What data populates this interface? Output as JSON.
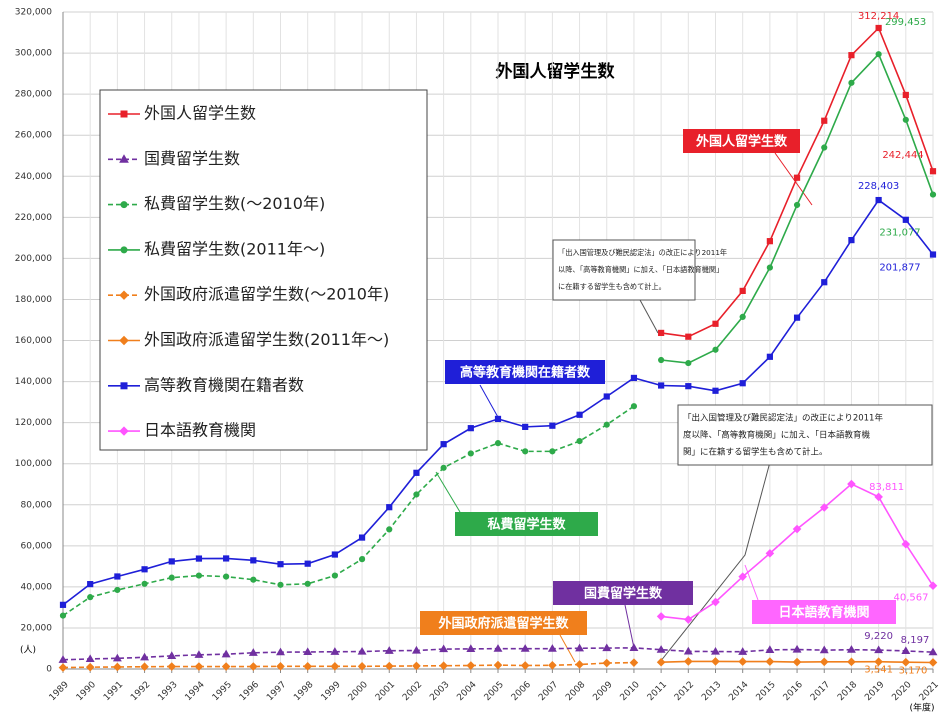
{
  "chart_data": {
    "type": "line",
    "title": "外国人留学生数",
    "y_unit": "(人)",
    "x_unit": "(年度)",
    "categories": [
      "1989",
      "1990",
      "1991",
      "1992",
      "1993",
      "1994",
      "1995",
      "1996",
      "1997",
      "1998",
      "1999",
      "2000",
      "2001",
      "2002",
      "2003",
      "2004",
      "2005",
      "2006",
      "2007",
      "2008",
      "2009",
      "2010",
      "2011",
      "2012",
      "2013",
      "2014",
      "2015",
      "2016",
      "2017",
      "2018",
      "2019",
      "2020",
      "2021"
    ],
    "ylim": [
      0,
      320000
    ],
    "yticks": [
      0,
      {
        "value": 20000,
        "label": "20,000"
      },
      {
        "value": 40000,
        "label": "40,000"
      },
      {
        "value": 60000,
        "label": "60,000"
      },
      {
        "value": 80000,
        "label": "80,000"
      },
      {
        "value": 100000,
        "label": "100,000"
      },
      {
        "value": 120000,
        "label": "120,000"
      },
      {
        "value": 140000,
        "label": "140,000"
      },
      {
        "value": 160000,
        "label": "160,000"
      },
      {
        "value": 180000,
        "label": "180,000"
      },
      {
        "value": 200000,
        "label": "200,000"
      },
      {
        "value": 220000,
        "label": "220,000"
      },
      {
        "value": 240000,
        "label": "240,000"
      },
      {
        "value": 260000,
        "label": "260,000"
      },
      {
        "value": 280000,
        "label": "280,000"
      },
      {
        "value": 300000,
        "label": "300,000"
      },
      {
        "value": 320000,
        "label": "320,000"
      }
    ],
    "grid": true,
    "legend": "top-left",
    "series": [
      {
        "name": "外国人留学生数",
        "color": "#e8202a",
        "marker": "square",
        "dash": false,
        "values": [
          null,
          null,
          null,
          null,
          null,
          null,
          null,
          null,
          null,
          null,
          null,
          null,
          null,
          null,
          null,
          null,
          null,
          null,
          null,
          null,
          null,
          null,
          163697,
          161848,
          168145,
          184155,
          208379,
          239287,
          267042,
          298980,
          312214,
          279597,
          242444
        ],
        "value_labels": [
          null,
          null,
          null,
          null,
          null,
          null,
          null,
          null,
          null,
          null,
          null,
          null,
          null,
          null,
          null,
          null,
          null,
          null,
          null,
          null,
          null,
          null,
          null,
          null,
          null,
          null,
          null,
          null,
          null,
          null,
          "312,214",
          null,
          "242,444"
        ]
      },
      {
        "name": "国費留学生数",
        "color": "#7030a0",
        "marker": "triangle",
        "dash": true,
        "values": [
          4500,
          4900,
          5200,
          5700,
          6400,
          6900,
          7200,
          7900,
          8200,
          8300,
          8400,
          8500,
          8900,
          9000,
          9700,
          9800,
          9900,
          9900,
          9900,
          10100,
          10200,
          10300,
          9400,
          8600,
          8500,
          8400,
          9300,
          9500,
          9200,
          9400,
          9220,
          8800,
          8197
        ],
        "value_labels": [
          null,
          null,
          null,
          null,
          null,
          null,
          null,
          null,
          null,
          null,
          null,
          null,
          null,
          null,
          null,
          null,
          null,
          null,
          null,
          null,
          null,
          null,
          null,
          null,
          null,
          null,
          null,
          null,
          null,
          null,
          "9,220",
          null,
          "8,197"
        ]
      },
      {
        "name": "私費留学生数(～2010年)",
        "color": "#2eaa4a",
        "marker": "circle",
        "dash": true,
        "values": [
          26000,
          35000,
          38500,
          41500,
          44500,
          45500,
          45000,
          43500,
          41000,
          41500,
          45500,
          53500,
          68000,
          85000,
          98000,
          105000,
          110000,
          106000,
          106000,
          111000,
          119000,
          128000,
          null,
          null,
          null,
          null,
          null,
          null,
          null,
          null,
          null,
          null,
          null
        ]
      },
      {
        "name": "私費留学生数(2011年～)",
        "color": "#2eaa4a",
        "marker": "circle",
        "dash": false,
        "values": [
          null,
          null,
          null,
          null,
          null,
          null,
          null,
          null,
          null,
          null,
          null,
          null,
          null,
          null,
          null,
          null,
          null,
          null,
          null,
          null,
          null,
          null,
          150500,
          149000,
          155500,
          171500,
          195500,
          226000,
          254000,
          285500,
          299453,
          267500,
          231077
        ],
        "value_labels": [
          null,
          null,
          null,
          null,
          null,
          null,
          null,
          null,
          null,
          null,
          null,
          null,
          null,
          null,
          null,
          null,
          null,
          null,
          null,
          null,
          null,
          null,
          null,
          null,
          null,
          null,
          null,
          null,
          null,
          null,
          "299,453",
          null,
          "231,077"
        ]
      },
      {
        "name": "外国政府派遣留学生数(～2010年)",
        "color": "#f07f1c",
        "marker": "diamond",
        "dash": true,
        "values": [
          700,
          900,
          1000,
          1100,
          1200,
          1200,
          1200,
          1200,
          1300,
          1300,
          1300,
          1300,
          1400,
          1500,
          1600,
          1700,
          1900,
          1700,
          1800,
          2200,
          2900,
          3100,
          null,
          null,
          null,
          null,
          null,
          null,
          null,
          null,
          null,
          null,
          null
        ]
      },
      {
        "name": "外国政府派遣留学生数(2011年～)",
        "color": "#f07f1c",
        "marker": "diamond",
        "dash": false,
        "values": [
          null,
          null,
          null,
          null,
          null,
          null,
          null,
          null,
          null,
          null,
          null,
          null,
          null,
          null,
          null,
          null,
          null,
          null,
          null,
          null,
          null,
          null,
          3300,
          3700,
          3700,
          3600,
          3600,
          3400,
          3500,
          3500,
          3541,
          3300,
          3170
        ],
        "value_labels": [
          null,
          null,
          null,
          null,
          null,
          null,
          null,
          null,
          null,
          null,
          null,
          null,
          null,
          null,
          null,
          null,
          null,
          null,
          null,
          null,
          null,
          null,
          null,
          null,
          null,
          null,
          null,
          null,
          null,
          null,
          "3,541",
          null,
          "3,170"
        ]
      },
      {
        "name": "高等教育機関在籍者数",
        "color": "#1f1fd8",
        "marker": "square",
        "dash": false,
        "values": [
          31251,
          41347,
          45066,
          48561,
          52405,
          53787,
          53847,
          52921,
          51047,
          51298,
          55755,
          64011,
          78812,
          95550,
          109508,
          117302,
          121812,
          117927,
          118498,
          123829,
          132720,
          141774,
          138075,
          137756,
          135519,
          139185,
          152062,
          171122,
          188384,
          208901,
          228403,
          218783,
          201877
        ],
        "value_labels": [
          null,
          null,
          null,
          null,
          null,
          null,
          null,
          null,
          null,
          null,
          null,
          null,
          null,
          null,
          null,
          null,
          null,
          null,
          null,
          null,
          null,
          null,
          null,
          null,
          null,
          null,
          null,
          null,
          null,
          null,
          "228,403",
          null,
          "201,877"
        ]
      },
      {
        "name": "日本語教育機関",
        "color": "#ff55ff",
        "marker": "diamond",
        "dash": false,
        "values": [
          null,
          null,
          null,
          null,
          null,
          null,
          null,
          null,
          null,
          null,
          null,
          null,
          null,
          null,
          null,
          null,
          null,
          null,
          null,
          null,
          null,
          null,
          25622,
          24092,
          32626,
          44970,
          56317,
          68165,
          78658,
          90079,
          83811,
          60814,
          40567
        ],
        "value_labels": [
          null,
          null,
          null,
          null,
          null,
          null,
          null,
          null,
          null,
          null,
          null,
          null,
          null,
          null,
          null,
          null,
          null,
          null,
          null,
          null,
          null,
          null,
          null,
          null,
          null,
          null,
          null,
          null,
          null,
          null,
          "83,811",
          null,
          "40,567"
        ]
      }
    ],
    "annotations": [
      {
        "text": "外国人留学生数",
        "color": "#e8202a"
      },
      {
        "text": "高等教育機関在籍者数",
        "color": "#1f1fd8"
      },
      {
        "text": "私費留学生数",
        "color": "#2eaa4a"
      },
      {
        "text": "国費留学生数",
        "color": "#7030a0"
      },
      {
        "text": "外国政府派遣留学生数",
        "color": "#f07f1c"
      },
      {
        "text": "日本語教育機関",
        "color": "#ff66ff"
      }
    ],
    "notes": [
      {
        "lines": [
          "「出入国管理及び難民認定法」の改正により2011年",
          "以降、「高等教育機関」に加え、「日本語教育機関」",
          "に在籍する留学生も含めて計上。"
        ]
      },
      {
        "lines": [
          "「出入国管理及び難民認定法」の改正により2011年",
          "度以降、「高等教育機関」に加え、「日本語教育機",
          "関」に在籍する留学生も含めて計上。"
        ]
      }
    ]
  }
}
